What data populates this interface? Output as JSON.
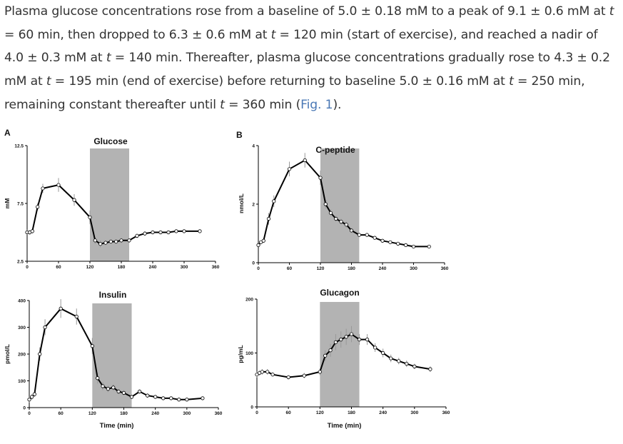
{
  "paragraph": {
    "s1": "Plasma glucose concentrations rose from a baseline of 5.0 ± 0.18 mM to a peak of 9.1 ± 0.6 mM at ",
    "t1": "t",
    "s2": " = 60 min, then dropped to 6.3 ± 0.6 mM at ",
    "t2": "t",
    "s3": " = 120 min (start of exercise), and reached a nadir of 4.0 ± 0.3 mM at ",
    "t3": "t",
    "s4": " = 140 min. Thereafter, plasma glucose concentrations gradually rose to 4.3 ± 0.2 mM at ",
    "t4": "t",
    "s5": " = 195 min (end of exercise) before returning to baseline 5.0 ± 0.16 mM at ",
    "t5": "t",
    "s6": " = 250 min, remaining constant thereafter until ",
    "t6": "t",
    "s7": " = 360 min (",
    "link": "Fig. 1",
    "s8": ")."
  },
  "figure": {
    "panel_labels": [
      "A",
      "B"
    ],
    "xlabel": "Time (min)",
    "line_color": "#000000",
    "shade_color": "#b3b3b3"
  },
  "chart_data": [
    {
      "type": "line",
      "title": "Glucose",
      "ylabel": "mM",
      "xlabel": "",
      "xlim": [
        0,
        360
      ],
      "ylim": [
        2.5,
        12.5
      ],
      "xticks": [
        "0",
        "60",
        "120",
        "180",
        "240",
        "300",
        "360"
      ],
      "yticks": [
        "2.5",
        "7.5",
        "12.5"
      ],
      "shaded_region": [
        120,
        195
      ],
      "x": [
        0,
        5,
        10,
        20,
        30,
        60,
        90,
        120,
        130,
        140,
        150,
        160,
        170,
        180,
        195,
        210,
        225,
        240,
        255,
        270,
        285,
        300,
        330
      ],
      "y": [
        5.0,
        5.0,
        5.1,
        7.2,
        8.8,
        9.1,
        7.8,
        6.3,
        4.3,
        4.0,
        4.1,
        4.2,
        4.2,
        4.3,
        4.3,
        4.7,
        4.9,
        5.0,
        5.0,
        5.0,
        5.1,
        5.1,
        5.1
      ],
      "err": [
        0.2,
        0.2,
        0.2,
        0.3,
        0.4,
        0.6,
        0.5,
        0.6,
        0.3,
        0.3,
        0.2,
        0.2,
        0.2,
        0.2,
        0.2,
        0.2,
        0.2,
        0.16,
        0.16,
        0.15,
        0.15,
        0.15,
        0.15
      ]
    },
    {
      "type": "line",
      "title": "C-peptide",
      "ylabel": "nmol/L",
      "xlabel": "",
      "xlim": [
        0,
        360
      ],
      "ylim": [
        0,
        4
      ],
      "xticks": [
        "0",
        "60",
        "120",
        "180",
        "240",
        "300",
        "360"
      ],
      "yticks": [
        "0",
        "2",
        "4"
      ],
      "shaded_region": [
        120,
        195
      ],
      "x": [
        0,
        5,
        10,
        20,
        30,
        60,
        90,
        120,
        130,
        140,
        150,
        160,
        170,
        180,
        195,
        210,
        225,
        240,
        255,
        270,
        285,
        300,
        330
      ],
      "y": [
        0.6,
        0.7,
        0.75,
        1.5,
        2.1,
        3.2,
        3.5,
        2.9,
        2.0,
        1.7,
        1.5,
        1.4,
        1.3,
        1.1,
        0.95,
        0.95,
        0.85,
        0.75,
        0.7,
        0.65,
        0.6,
        0.55,
        0.55
      ],
      "err": [
        0.05,
        0.05,
        0.05,
        0.2,
        0.2,
        0.25,
        0.25,
        0.25,
        0.15,
        0.12,
        0.1,
        0.1,
        0.1,
        0.08,
        0.07,
        0.07,
        0.05,
        0.05,
        0.05,
        0.04,
        0.04,
        0.04,
        0.04
      ]
    },
    {
      "type": "line",
      "title": "Insulin",
      "ylabel": "pmol/L",
      "xlabel": "Time (min)",
      "xlim": [
        0,
        360
      ],
      "ylim": [
        0,
        400
      ],
      "xticks": [
        "0",
        "60",
        "120",
        "180",
        "240",
        "300",
        "360"
      ],
      "yticks": [
        "0",
        "100",
        "200",
        "300",
        "400"
      ],
      "shaded_region": [
        120,
        195
      ],
      "x": [
        0,
        5,
        10,
        20,
        30,
        60,
        90,
        120,
        130,
        140,
        150,
        160,
        170,
        180,
        195,
        210,
        225,
        240,
        255,
        270,
        285,
        300,
        330
      ],
      "y": [
        30,
        40,
        50,
        200,
        300,
        370,
        340,
        230,
        110,
        80,
        70,
        75,
        60,
        55,
        40,
        60,
        45,
        40,
        35,
        35,
        30,
        30,
        35
      ],
      "err": [
        10,
        10,
        10,
        25,
        30,
        35,
        30,
        30,
        20,
        15,
        12,
        12,
        10,
        10,
        8,
        8,
        8,
        6,
        6,
        6,
        5,
        5,
        6
      ]
    },
    {
      "type": "line",
      "title": "Glucagon",
      "ylabel": "pg/mL",
      "xlabel": "Time (min)",
      "xlim": [
        0,
        360
      ],
      "ylim": [
        0,
        200
      ],
      "xticks": [
        "0",
        "60",
        "120",
        "180",
        "240",
        "300",
        "360"
      ],
      "yticks": [
        "0",
        "100",
        "200"
      ],
      "shaded_region": [
        120,
        195
      ],
      "x": [
        0,
        5,
        10,
        20,
        30,
        60,
        90,
        120,
        130,
        140,
        150,
        160,
        170,
        180,
        195,
        210,
        225,
        240,
        255,
        270,
        285,
        300,
        330
      ],
      "y": [
        60,
        63,
        65,
        65,
        60,
        55,
        58,
        65,
        95,
        105,
        120,
        125,
        130,
        135,
        125,
        125,
        110,
        100,
        90,
        85,
        80,
        75,
        70
      ],
      "err": [
        5,
        5,
        5,
        5,
        4,
        4,
        5,
        6,
        10,
        12,
        15,
        15,
        15,
        15,
        10,
        10,
        8,
        8,
        7,
        6,
        6,
        5,
        5
      ]
    }
  ]
}
